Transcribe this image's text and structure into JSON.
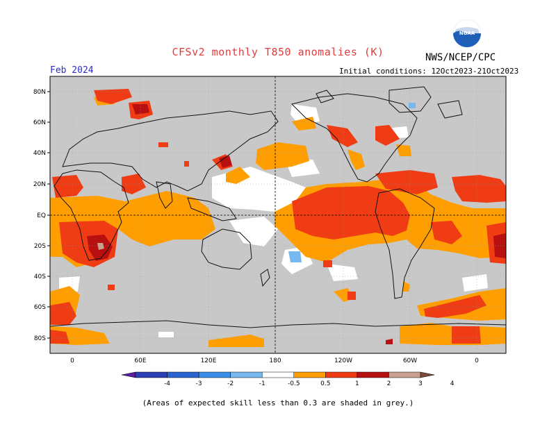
{
  "title": "CFSv2 monthly T850 anomalies (K)",
  "agency": "NWS/NCEP/CPC",
  "logo_text": "NOAA",
  "target_month": "Feb 2024",
  "initial_conditions": "Initial conditions: 12Oct2023-21Oct2023",
  "lat_labels": [
    "80N",
    "60N",
    "40N",
    "20N",
    "EQ",
    "20S",
    "40S",
    "60S",
    "80S"
  ],
  "lon_labels": [
    "0",
    "60E",
    "120E",
    "180",
    "120W",
    "60W",
    "0"
  ],
  "colorbar": {
    "ticks": [
      "-4",
      "-3",
      "-2",
      "-1",
      "-0.5",
      "0.5",
      "1",
      "2",
      "3",
      "4"
    ],
    "bins": [
      {
        "range": "<-4",
        "color": "#5a1fa0"
      },
      {
        "range": "-4 to -3",
        "color": "#2d3fb5"
      },
      {
        "range": "-3 to -2",
        "color": "#2a64d0"
      },
      {
        "range": "-2 to -1",
        "color": "#3b8ee8"
      },
      {
        "range": "-1 to -0.5",
        "color": "#78b8f0"
      },
      {
        "range": "-0.5 to 0.5",
        "color": "#ffffff"
      },
      {
        "range": "0.5 to 1",
        "color": "#ff9e00"
      },
      {
        "range": "1 to 2",
        "color": "#f03c14"
      },
      {
        "range": "2 to 3",
        "color": "#b80f10"
      },
      {
        "range": "3 to 4",
        "color": "#c9a08f"
      },
      {
        "range": ">4",
        "color": "#7a4b3a"
      }
    ]
  },
  "skill_mask_color": "#c8c8c8",
  "footnote": "(Areas of expected skill less than 0.3 are shaded in grey.)"
}
